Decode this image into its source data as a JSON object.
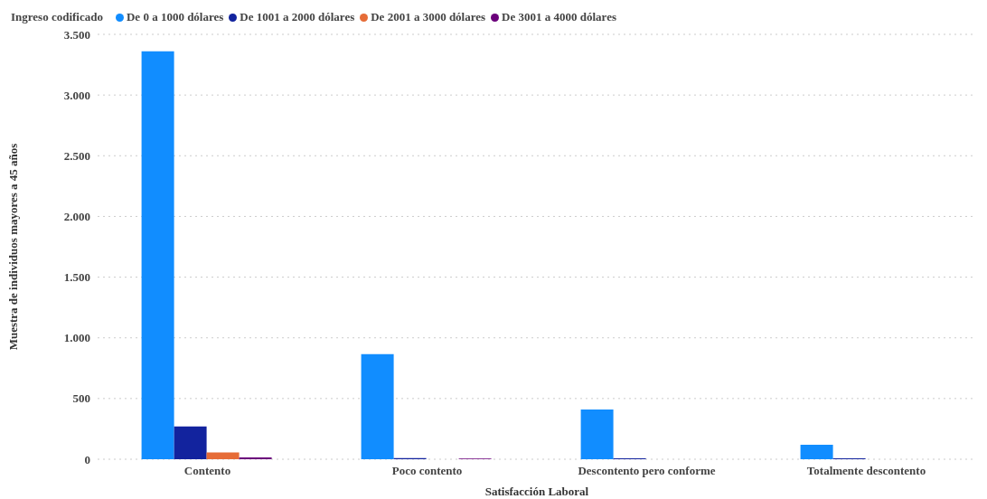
{
  "chart_data": {
    "type": "bar",
    "xlabel": "Satisfacción Laboral",
    "ylabel": "Muestra de individuos mayores a 45 años",
    "legend_title": "Ingreso codificado",
    "categories": [
      "Contento",
      "Poco contento",
      "Descontento pero conforme",
      "Totalmente descontento"
    ],
    "series": [
      {
        "name": "De 0 a 1000 dólares",
        "color": "#118dff",
        "values": [
          3360,
          865,
          410,
          120
        ]
      },
      {
        "name": "De 1001 a 2000 dólares",
        "color": "#12239e",
        "values": [
          270,
          10,
          8,
          8
        ]
      },
      {
        "name": "De 2001 a 3000 dólares",
        "color": "#e66c37",
        "values": [
          55,
          null,
          null,
          null
        ]
      },
      {
        "name": "De 3001 a 4000 dólares",
        "color": "#6b007b",
        "values": [
          15,
          5,
          null,
          null
        ]
      }
    ],
    "ylim": [
      0,
      3500
    ],
    "yticks": [
      0,
      500,
      {
        "value": 1000,
        "label": "1.000"
      },
      {
        "value": 1500,
        "label": "1.500"
      },
      {
        "value": 2000,
        "label": "2.000"
      },
      {
        "value": 2500,
        "label": "2.500"
      },
      {
        "value": 3000,
        "label": "3.000"
      },
      {
        "value": 3500,
        "label": "3.500"
      }
    ],
    "grid": "y",
    "legend": "top left"
  }
}
